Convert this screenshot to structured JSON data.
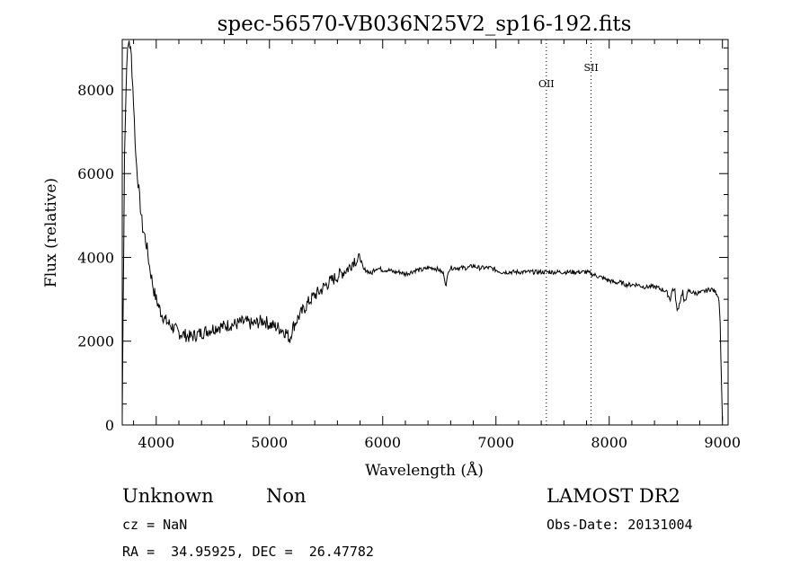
{
  "chart_data": {
    "type": "line",
    "title": "spec-56570-VB036N25V2_sp16-192.fits",
    "xlabel": "Wavelength (Å)",
    "ylabel": "Flux (relative)",
    "xlim": [
      3700,
      9050
    ],
    "ylim": [
      0,
      9200
    ],
    "xticks": [
      4000,
      5000,
      6000,
      7000,
      8000,
      9000
    ],
    "yticks": [
      0,
      2000,
      4000,
      6000,
      8000
    ],
    "grid": false,
    "series": [
      {
        "x": [
          3700,
          3720,
          3740,
          3760,
          3780,
          3800,
          3820,
          3840,
          3860,
          3880,
          3900,
          3920,
          3940,
          3960,
          3980,
          4000,
          4040,
          4080,
          4120,
          4160,
          4200,
          4250,
          4300,
          4350,
          4400,
          4450,
          4500,
          4550,
          4600,
          4650,
          4700,
          4750,
          4800,
          4850,
          4900,
          4950,
          5000,
          5050,
          5100,
          5150,
          5180,
          5200,
          5250,
          5300,
          5350,
          5400,
          5450,
          5500,
          5550,
          5600,
          5650,
          5700,
          5750,
          5780,
          5800,
          5830,
          5850,
          5880,
          5900,
          5920,
          5950,
          6000,
          6050,
          6100,
          6150,
          6200,
          6250,
          6300,
          6350,
          6400,
          6450,
          6500,
          6540,
          6560,
          6580,
          6600,
          6650,
          6700,
          6750,
          6800,
          6850,
          6900,
          6950,
          7000,
          7050,
          7100,
          7150,
          7200,
          7250,
          7300,
          7350,
          7400,
          7450,
          7500,
          7550,
          7600,
          7650,
          7700,
          7750,
          7800,
          7850,
          7900,
          7950,
          8000,
          8050,
          8100,
          8150,
          8200,
          8250,
          8300,
          8350,
          8400,
          8450,
          8500,
          8540,
          8560,
          8580,
          8600,
          8650,
          8660,
          8700,
          8750,
          8800,
          8850,
          8900,
          8950,
          8970,
          8980,
          8990,
          9000
        ],
        "y": [
          200,
          6500,
          8700,
          9200,
          8800,
          7700,
          6400,
          5800,
          5200,
          4700,
          4500,
          4200,
          3800,
          3500,
          3200,
          3000,
          2700,
          2500,
          2400,
          2300,
          2200,
          2150,
          2100,
          2150,
          2200,
          2250,
          2300,
          2350,
          2350,
          2400,
          2400,
          2450,
          2450,
          2400,
          2450,
          2500,
          2400,
          2350,
          2300,
          2200,
          2050,
          2300,
          2550,
          2750,
          2950,
          3100,
          3200,
          3350,
          3450,
          3550,
          3650,
          3750,
          3950,
          3900,
          4000,
          3700,
          3700,
          3650,
          3600,
          3700,
          3750,
          3700,
          3700,
          3650,
          3650,
          3600,
          3650,
          3700,
          3700,
          3750,
          3750,
          3700,
          3600,
          3300,
          3700,
          3750,
          3750,
          3750,
          3750,
          3800,
          3750,
          3750,
          3750,
          3700,
          3650,
          3650,
          3650,
          3650,
          3650,
          3650,
          3650,
          3650,
          3650,
          3650,
          3650,
          3650,
          3650,
          3650,
          3650,
          3650,
          3600,
          3550,
          3500,
          3450,
          3400,
          3400,
          3350,
          3350,
          3350,
          3300,
          3300,
          3300,
          3250,
          3200,
          3000,
          3250,
          3200,
          2700,
          3200,
          2900,
          3200,
          3150,
          3150,
          3200,
          3250,
          3150,
          3000,
          2400,
          1200,
          100
        ]
      }
    ],
    "annotations": [
      {
        "label": "OII",
        "x": 7445
      },
      {
        "label": "SII",
        "x": 7840
      }
    ]
  },
  "info": {
    "class": "Unknown",
    "subclass": "Non",
    "survey": "LAMOST DR2",
    "cz": "cz = NaN",
    "obs_date": "Obs-Date: 20131004",
    "coords": "RA =  34.95925, DEC =  26.47782"
  }
}
